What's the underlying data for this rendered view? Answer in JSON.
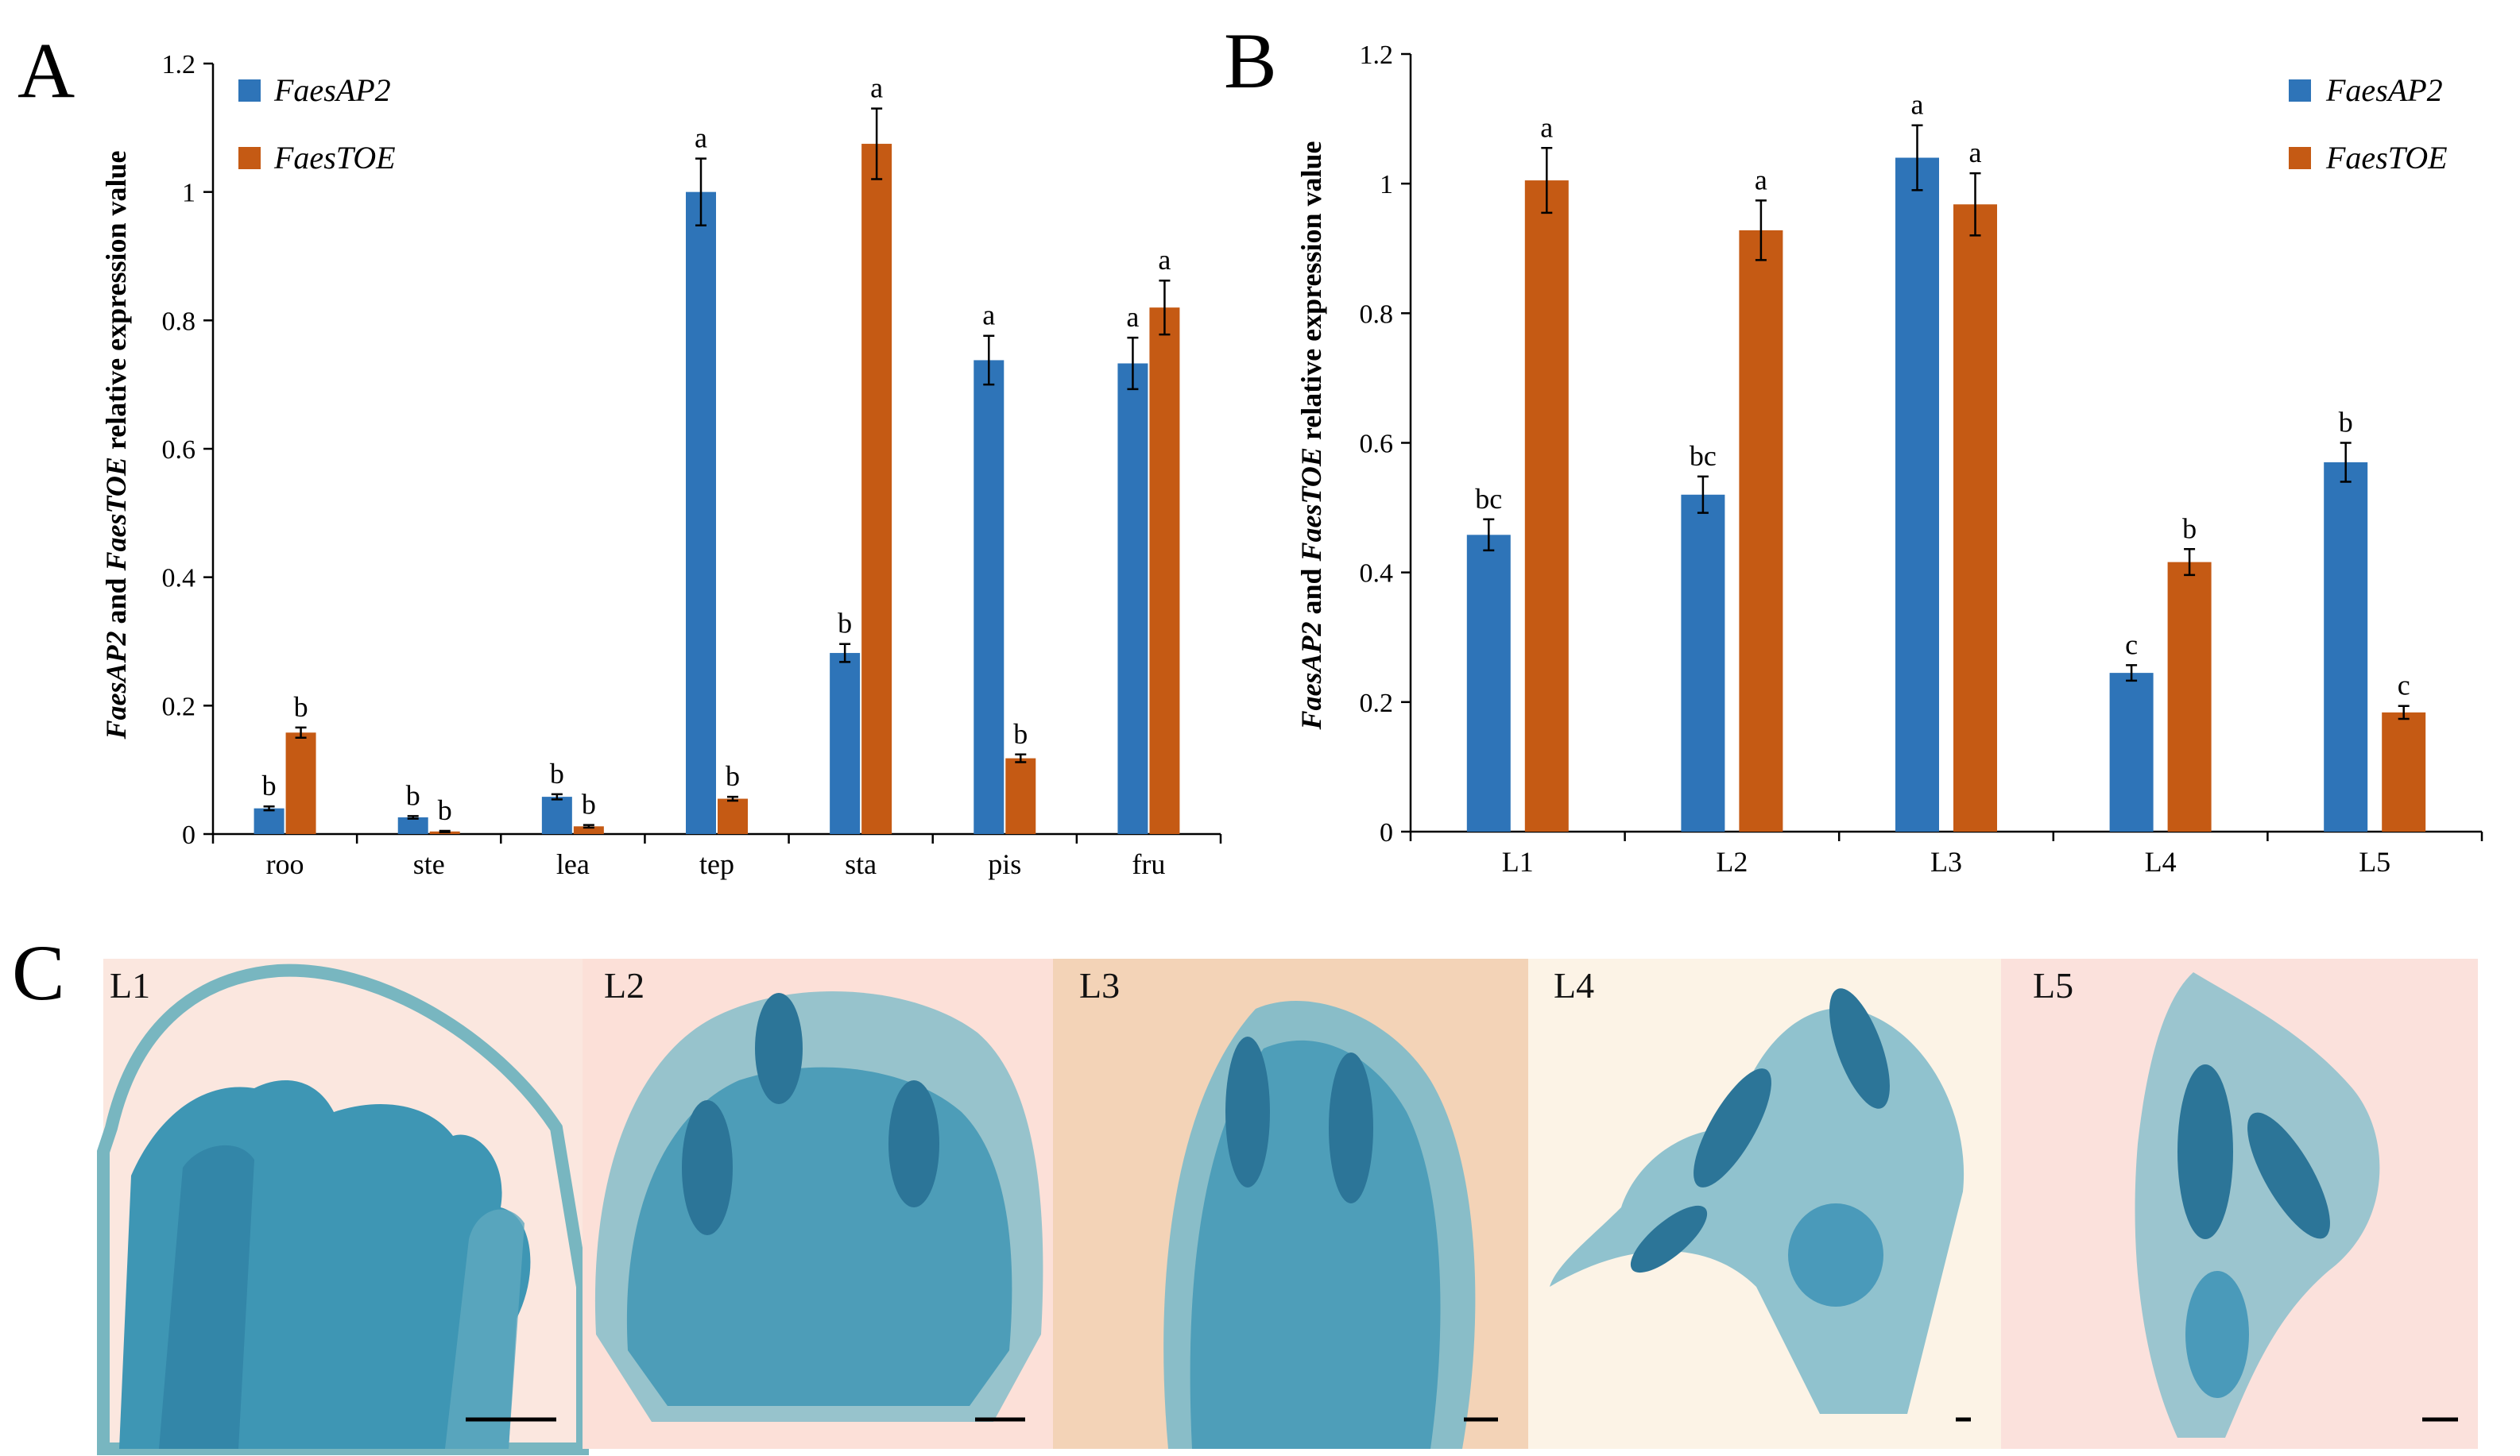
{
  "panels": {
    "a": "A",
    "b": "B",
    "c": "C"
  },
  "colors": {
    "faesap2": "#2E74B8",
    "faestoe": "#C55A14"
  },
  "chart_data": [
    {
      "id": "A",
      "type": "bar",
      "ylabel_parts": [
        "FaesAP2",
        " and ",
        "FaesTOE",
        " relative expression value"
      ],
      "ylim": [
        0,
        1.2
      ],
      "yticks": [
        "0",
        "0.2",
        "0.4",
        "0.6",
        "0.8",
        "1",
        "1.2"
      ],
      "ytick_values": [
        0,
        0.2,
        0.4,
        0.6,
        0.8,
        1.0,
        1.2
      ],
      "categories": [
        "roo",
        "ste",
        "lea",
        "tep",
        "sta",
        "pis",
        "fru"
      ],
      "legend_position": "top-left",
      "series": [
        {
          "name": "FaesAP2",
          "color": "#2E74B8",
          "values": [
            0.04,
            0.026,
            0.058,
            1.0,
            0.282,
            0.738,
            0.733
          ],
          "errors": [
            0.003,
            0.002,
            0.004,
            0.052,
            0.014,
            0.038,
            0.04
          ],
          "labels": [
            "b",
            "b",
            "b",
            "a",
            "b",
            "a",
            "a"
          ]
        },
        {
          "name": "FaesTOE",
          "color": "#C55A14",
          "values": [
            0.158,
            0.004,
            0.012,
            0.055,
            1.075,
            0.118,
            0.82
          ],
          "errors": [
            0.008,
            0.001,
            0.002,
            0.003,
            0.055,
            0.006,
            0.042
          ],
          "labels": [
            "b",
            "b",
            "b",
            "b",
            "a",
            "b",
            "a"
          ]
        }
      ]
    },
    {
      "id": "B",
      "type": "bar",
      "ylabel_parts": [
        "FaesAP2",
        " and ",
        "FaesTOE",
        " relative expression value"
      ],
      "ylim": [
        0,
        1.2
      ],
      "yticks": [
        "0",
        "0.2",
        "0.4",
        "0.6",
        "0.8",
        "1",
        "1.2"
      ],
      "ytick_values": [
        0,
        0.2,
        0.4,
        0.6,
        0.8,
        1.0,
        1.2
      ],
      "categories": [
        "L1",
        "L2",
        "L3",
        "L4",
        "L5"
      ],
      "legend_position": "top-right",
      "series": [
        {
          "name": "FaesAP2",
          "color": "#2E74B8",
          "values": [
            0.458,
            0.52,
            1.04,
            0.245,
            0.57
          ],
          "errors": [
            0.024,
            0.028,
            0.05,
            0.012,
            0.03
          ],
          "labels": [
            "bc",
            "bc",
            "a",
            "c",
            "b"
          ]
        },
        {
          "name": "FaesTOE",
          "color": "#C55A14",
          "values": [
            1.005,
            0.928,
            0.968,
            0.416,
            0.184
          ],
          "errors": [
            0.05,
            0.046,
            0.048,
            0.02,
            0.01
          ],
          "labels": [
            "a",
            "a",
            "a",
            "b",
            "c"
          ]
        }
      ]
    }
  ],
  "micrographs": [
    {
      "label": "L1",
      "bg": "#FBE7DF"
    },
    {
      "label": "L2",
      "bg": "#FCE0D8"
    },
    {
      "label": "L3",
      "bg": "#F3D3B7"
    },
    {
      "label": "L4",
      "bg": "#FCF3E6"
    },
    {
      "label": "L5",
      "bg": "#FBE1DC"
    }
  ]
}
